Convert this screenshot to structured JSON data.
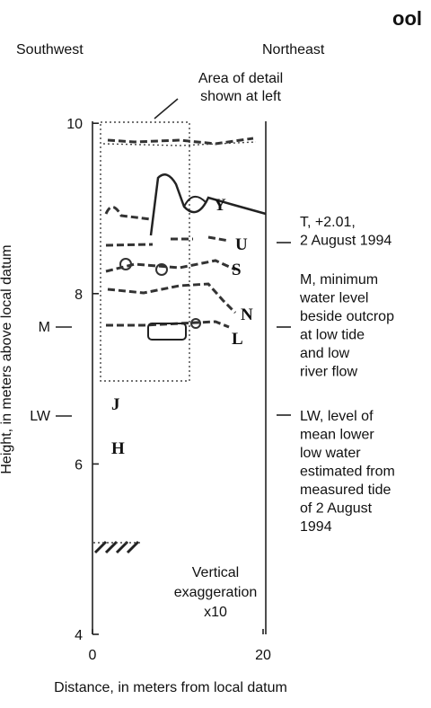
{
  "header": {
    "title": "ool"
  },
  "directions": {
    "left": "Southwest",
    "right": "Northeast"
  },
  "detail_note": {
    "lines": [
      "Area of detail",
      "shown at left"
    ]
  },
  "exaggeration": {
    "lines": [
      "Vertical",
      "exaggeration",
      "x10"
    ]
  },
  "axes": {
    "y_label": "Height, in meters above local datum",
    "x_label": "Distance, in meters from local datum",
    "y_ticks": [
      4,
      6,
      8,
      10
    ],
    "x_ticks": [
      0,
      20
    ]
  },
  "units": [
    "Y",
    "U",
    "S",
    "N",
    "L",
    "J",
    "H"
  ],
  "levels": {
    "left": [
      "M",
      "LW"
    ],
    "notes": [
      [
        "T, +2.01,",
        "2 August 1994"
      ],
      [
        "M, minimum",
        "water level",
        "beside outcrop",
        "at low tide",
        "and low",
        "river flow"
      ],
      [
        "LW, level of",
        "mean lower",
        "low water",
        "estimated from",
        "measured tide",
        "of 2 August",
        "1994"
      ]
    ]
  }
}
